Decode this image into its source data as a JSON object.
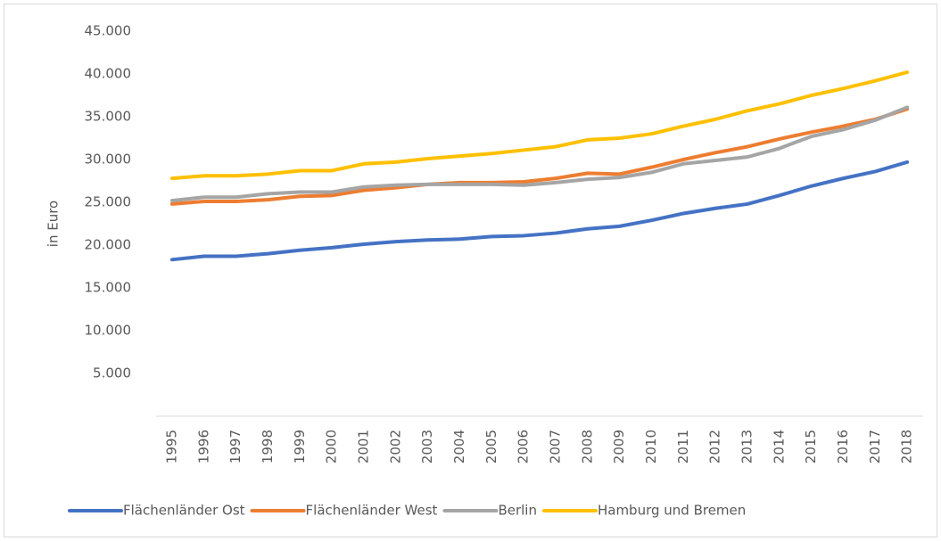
{
  "chart_data": {
    "type": "line",
    "y_label": "in Euro",
    "categories": [
      "1995",
      "1996",
      "1997",
      "1998",
      "1999",
      "2000",
      "2001",
      "2002",
      "2003",
      "2004",
      "2005",
      "2006",
      "2007",
      "2008",
      "2009",
      "2010",
      "2011",
      "2012",
      "2013",
      "2014",
      "2015",
      "2016",
      "2017",
      "2018"
    ],
    "series": [
      {
        "name": "Flächenländer Ost",
        "color": "#4472c4",
        "values": [
          18300,
          18700,
          18700,
          19000,
          19400,
          19700,
          20100,
          20400,
          20600,
          20700,
          21000,
          21100,
          21400,
          21900,
          22200,
          22900,
          23700,
          24300,
          24800,
          25800,
          26900,
          27800,
          28600,
          29700
        ]
      },
      {
        "name": "Flächenländer West",
        "color": "#ed7d31",
        "values": [
          24800,
          25100,
          25100,
          25300,
          25700,
          25800,
          26400,
          26700,
          27100,
          27300,
          27300,
          27400,
          27800,
          28400,
          28300,
          29100,
          30000,
          30800,
          31500,
          32400,
          33200,
          33900,
          34700,
          35900
        ]
      },
      {
        "name": "Berlin",
        "color": "#a5a5a5",
        "values": [
          25200,
          25600,
          25600,
          26000,
          26200,
          26200,
          26800,
          27000,
          27100,
          27100,
          27100,
          27000,
          27300,
          27700,
          27900,
          28500,
          29500,
          29900,
          30300,
          31300,
          32700,
          33500,
          34600,
          36100
        ]
      },
      {
        "name": "Hamburg und Bremen",
        "color": "#ffc000",
        "values": [
          27800,
          28100,
          28100,
          28300,
          28700,
          28700,
          29500,
          29700,
          30100,
          30400,
          30700,
          31100,
          31500,
          32300,
          32500,
          33000,
          33900,
          34700,
          35700,
          36500,
          37500,
          38300,
          39200,
          40200
        ]
      }
    ],
    "ylim": [
      0,
      45000
    ],
    "yticks": [
      {
        "value": 5000,
        "label": "5.000"
      },
      {
        "value": 10000,
        "label": "10.000"
      },
      {
        "value": 15000,
        "label": "15.000"
      },
      {
        "value": 20000,
        "label": "20.000"
      },
      {
        "value": 25000,
        "label": "25.000"
      },
      {
        "value": 30000,
        "label": "30.000"
      },
      {
        "value": 35000,
        "label": "35.000"
      },
      {
        "value": 40000,
        "label": "40.000"
      },
      {
        "value": 45000,
        "label": "45.000"
      }
    ],
    "grid": false,
    "legend": "bottom"
  }
}
